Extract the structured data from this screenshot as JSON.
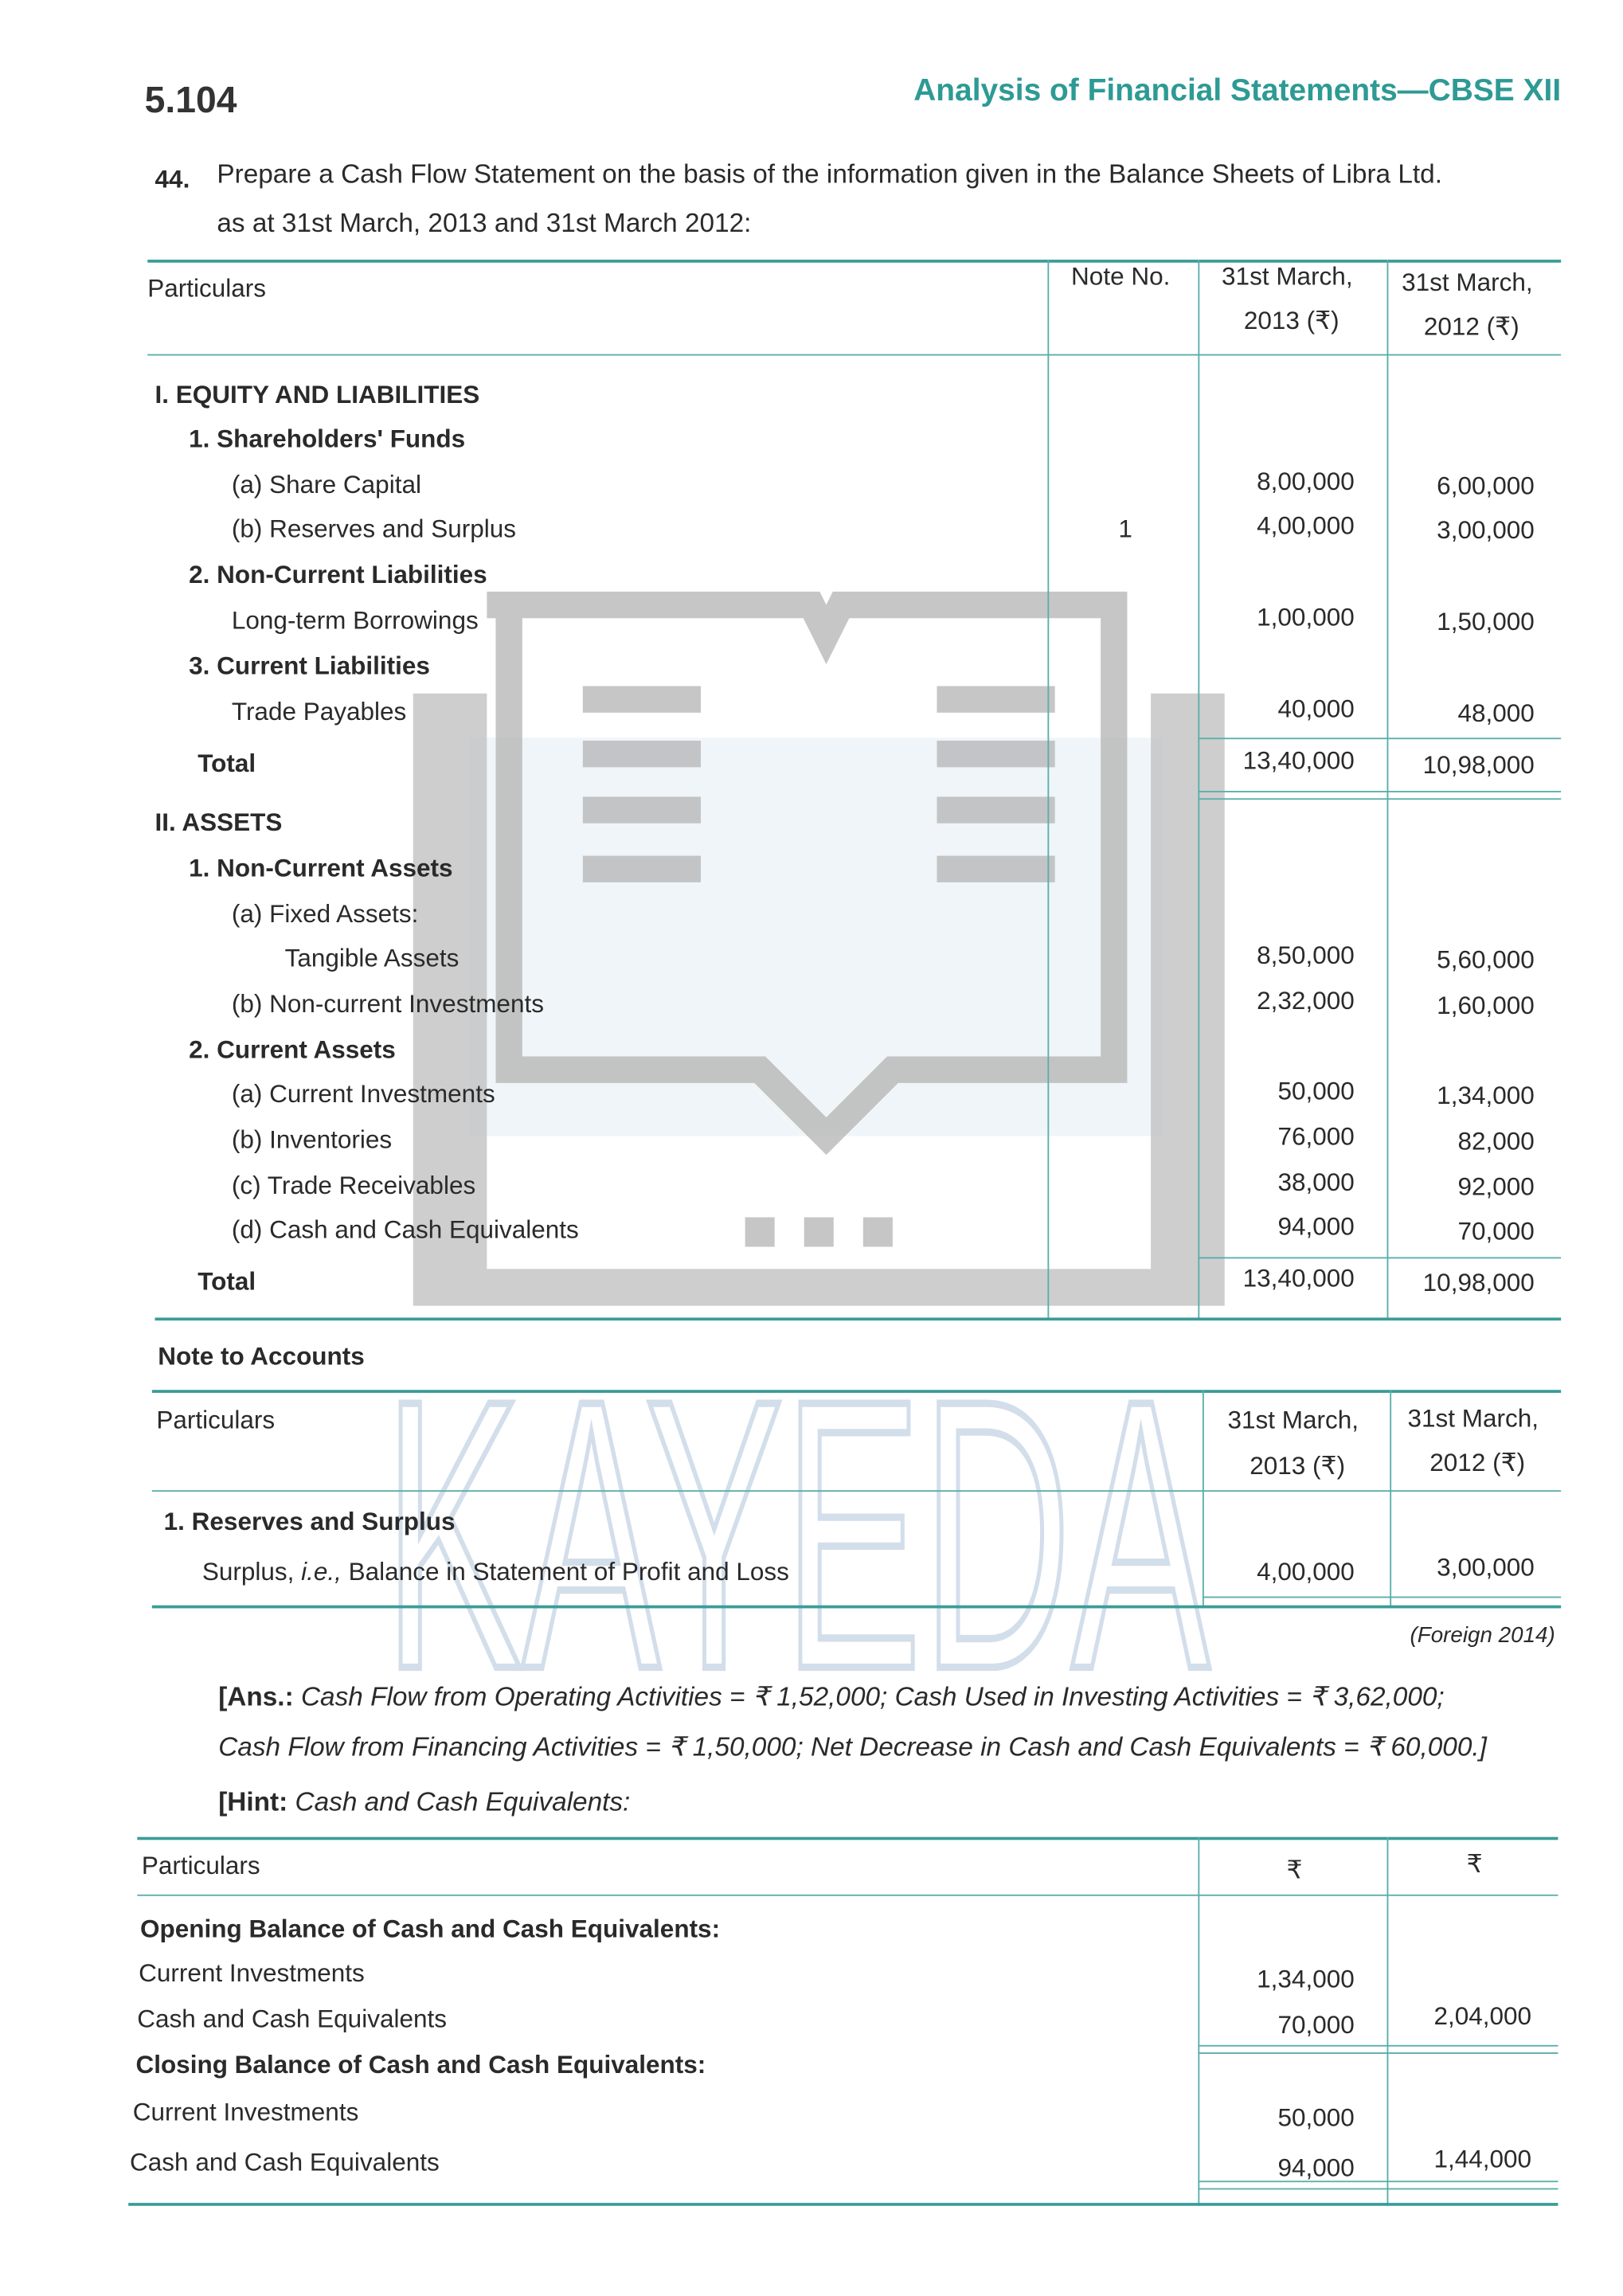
{
  "header": {
    "page_number": "5.104",
    "book_title": "Analysis of Financial Statements—CBSE XII"
  },
  "question": {
    "number": "44.",
    "text_line1": "Prepare a Cash Flow Statement on the basis of the information given in the Balance Sheets of Libra Ltd.",
    "text_line2": "as at 31st March, 2013 and 31st March 2012:"
  },
  "balance_sheet": {
    "headers": {
      "particulars": "Particulars",
      "note": "Note No.",
      "col1_l1": "31st March,",
      "col1_l2": "2013 (₹)",
      "col2_l1": "31st March,",
      "col2_l2": "2012 (₹)"
    },
    "rows": [
      {
        "label": "I.  EQUITY AND LIABILITIES",
        "bold": true,
        "indent": 0
      },
      {
        "label": "1.  Shareholders' Funds",
        "bold": true,
        "indent": 1
      },
      {
        "label": "(a)  Share Capital",
        "indent": 2,
        "v1": "8,00,000",
        "v2": "6,00,000"
      },
      {
        "label": "(b)  Reserves and Surplus",
        "indent": 2,
        "note": "1",
        "v1": "4,00,000",
        "v2": "3,00,000"
      },
      {
        "label": "2.  Non-Current Liabilities",
        "bold": true,
        "indent": 1
      },
      {
        "label": "Long-term Borrowings",
        "indent": 3,
        "v1": "1,00,000",
        "v2": "1,50,000"
      },
      {
        "label": "3.  Current Liabilities",
        "bold": true,
        "indent": 1
      },
      {
        "label": "Trade Payables",
        "indent": 3,
        "v1": "40,000",
        "v2": "48,000"
      },
      {
        "label": "Total",
        "bold": true,
        "indent": 1,
        "v1": "13,40,000",
        "v2": "10,98,000",
        "total": true
      },
      {
        "label": "II.  ASSETS",
        "bold": true,
        "indent": 0
      },
      {
        "label": "1.  Non-Current Assets",
        "bold": true,
        "indent": 1
      },
      {
        "label": "(a)  Fixed Assets:",
        "indent": 2
      },
      {
        "label": "Tangible Assets",
        "indent": 4,
        "v1": "8,50,000",
        "v2": "5,60,000"
      },
      {
        "label": "(b)  Non-current Investments",
        "indent": 2,
        "v1": "2,32,000",
        "v2": "1,60,000"
      },
      {
        "label": "2.  Current Assets",
        "bold": true,
        "indent": 1
      },
      {
        "label": "(a)  Current Investments",
        "indent": 2,
        "v1": "50,000",
        "v2": "1,34,000"
      },
      {
        "label": "(b)  Inventories",
        "indent": 2,
        "v1": "76,000",
        "v2": "82,000"
      },
      {
        "label": "(c)  Trade Receivables",
        "indent": 2,
        "v1": "38,000",
        "v2": "92,000"
      },
      {
        "label": "(d)  Cash and Cash Equivalents",
        "indent": 2,
        "v1": "94,000",
        "v2": "70,000"
      },
      {
        "label": "Total",
        "bold": true,
        "indent": 1,
        "v1": "13,40,000",
        "v2": "10,98,000",
        "total": true
      }
    ]
  },
  "notes": {
    "title": "Note to Accounts",
    "headers": {
      "particulars": "Particulars",
      "col1_l1": "31st March,",
      "col1_l2": "2013 (₹)",
      "col2_l1": "31st March,",
      "col2_l2": "2012 (₹)"
    },
    "heading": "1.  Reserves and Surplus",
    "row_label_pre": "Surplus, ",
    "row_label_ie": "i.e.,",
    "row_label_post": " Balance in Statement of Profit and Loss",
    "v1": "4,00,000",
    "v2": "3,00,000"
  },
  "source": "(Foreign 2014)",
  "answer": {
    "label": "[Ans.:",
    "line1": " Cash Flow from Operating Activities = ₹ 1,52,000; Cash Used in Investing Activities = ₹ 3,62,000;",
    "line2": "Cash Flow from Financing Activities = ₹ 1,50,000; Net Decrease in Cash and Cash Equivalents = ₹ 60,000.]"
  },
  "hint": {
    "label": "[Hint:",
    "text": " Cash and Cash Equivalents:",
    "headers": {
      "particulars": "Particulars",
      "col1": "₹",
      "col2": "₹"
    },
    "rows": [
      {
        "label": "Opening Balance of Cash and Cash Equivalents:",
        "bold": true
      },
      {
        "label": "Current Investments",
        "v1": "1,34,000"
      },
      {
        "label": "Cash and Cash Equivalents",
        "v1": "70,000",
        "v2": "2,04,000"
      },
      {
        "label": "Closing Balance of Cash and Cash Equivalents:",
        "bold": true
      },
      {
        "label": "Current Investments",
        "v1": "50,000"
      },
      {
        "label": "Cash and Cash Equivalents",
        "v1": "94,000",
        "v2": "1,44,000"
      }
    ]
  },
  "watermark": {
    "text": "KAYEDA",
    "icon": "open-book-laptop-icon"
  },
  "colors": {
    "accent": "#2e9a94",
    "text": "#2a2a2a",
    "watermark": "#c8c8c8"
  }
}
